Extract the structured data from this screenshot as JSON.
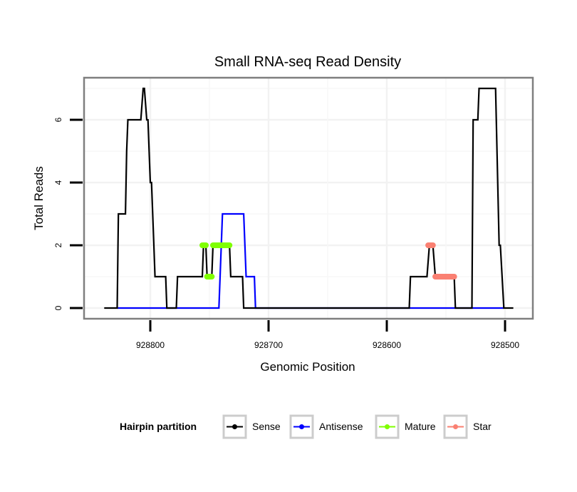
{
  "chart_data": {
    "type": "line",
    "title": "Small RNA-seq Read Density",
    "xlabel": "Genomic Position",
    "ylabel": "Total Reads",
    "xlim": [
      928839,
      928485
    ],
    "x_reversed": true,
    "ylim": [
      -0.35,
      7.35
    ],
    "xticks": [
      928800,
      928700,
      928600,
      928500
    ],
    "xtick_labels": [
      "928800",
      "928700",
      "928600",
      "928500"
    ],
    "yticks": [
      0,
      2,
      4,
      6
    ],
    "ytick_labels": [
      "0",
      "2",
      "4",
      "6"
    ],
    "grid": true,
    "legend": {
      "title": "Hairpin partition",
      "placement": "bottom",
      "entries": [
        {
          "name": "Sense",
          "color": "#000000"
        },
        {
          "name": "Antisense",
          "color": "#0000ff"
        },
        {
          "name": "Mature",
          "color": "#7fff00"
        },
        {
          "name": "Star",
          "color": "#fa8072"
        }
      ]
    },
    "series": [
      {
        "name": "Sense",
        "color": "#000000",
        "kind": "line",
        "points": [
          [
            928839,
            0
          ],
          [
            928828,
            0
          ],
          [
            928827,
            3
          ],
          [
            928821,
            3
          ],
          [
            928820,
            5
          ],
          [
            928819,
            6
          ],
          [
            928808,
            6
          ],
          [
            928806,
            7
          ],
          [
            928805,
            7
          ],
          [
            928803,
            6
          ],
          [
            928802,
            6
          ],
          [
            928800,
            4
          ],
          [
            928799,
            4
          ],
          [
            928797,
            2
          ],
          [
            928796,
            1
          ],
          [
            928787,
            1
          ],
          [
            928786,
            0
          ],
          [
            928778,
            0
          ],
          [
            928777,
            1
          ],
          [
            928756,
            1
          ],
          [
            928755,
            2
          ],
          [
            928753,
            2
          ],
          [
            928752,
            1
          ],
          [
            928748,
            1
          ],
          [
            928747,
            2
          ],
          [
            928733,
            2
          ],
          [
            928732,
            1
          ],
          [
            928722,
            1
          ],
          [
            928721,
            0
          ],
          [
            928581,
            0
          ],
          [
            928580,
            1
          ],
          [
            928566,
            1
          ],
          [
            928564,
            2
          ],
          [
            928561,
            2
          ],
          [
            928559,
            1
          ],
          [
            928543,
            1
          ],
          [
            928542,
            0
          ],
          [
            928528,
            0
          ],
          [
            928527,
            6
          ],
          [
            928523,
            6
          ],
          [
            928522,
            7
          ],
          [
            928508,
            7
          ],
          [
            928505,
            2
          ],
          [
            928504,
            2
          ],
          [
            928501,
            0
          ],
          [
            928493,
            0
          ]
        ]
      },
      {
        "name": "Antisense",
        "color": "#0000ff",
        "kind": "line",
        "points": [
          [
            928828,
            0
          ],
          [
            928742,
            0
          ],
          [
            928739,
            3
          ],
          [
            928721,
            3
          ],
          [
            928719,
            1
          ],
          [
            928712,
            1
          ],
          [
            928711,
            0
          ],
          [
            928501,
            0
          ]
        ]
      },
      {
        "name": "Mature",
        "color": "#7fff00",
        "kind": "segments",
        "segments": [
          {
            "x": [
              928756,
              928753
            ],
            "y": 2
          },
          {
            "x": [
              928752,
              928748
            ],
            "y": 1
          },
          {
            "x": [
              928747,
              928733
            ],
            "y": 2
          }
        ]
      },
      {
        "name": "Star",
        "color": "#fa8072",
        "kind": "segments",
        "segments": [
          {
            "x": [
              928565,
              928561
            ],
            "y": 2
          },
          {
            "x": [
              928559,
              928543
            ],
            "y": 1
          }
        ]
      }
    ]
  }
}
